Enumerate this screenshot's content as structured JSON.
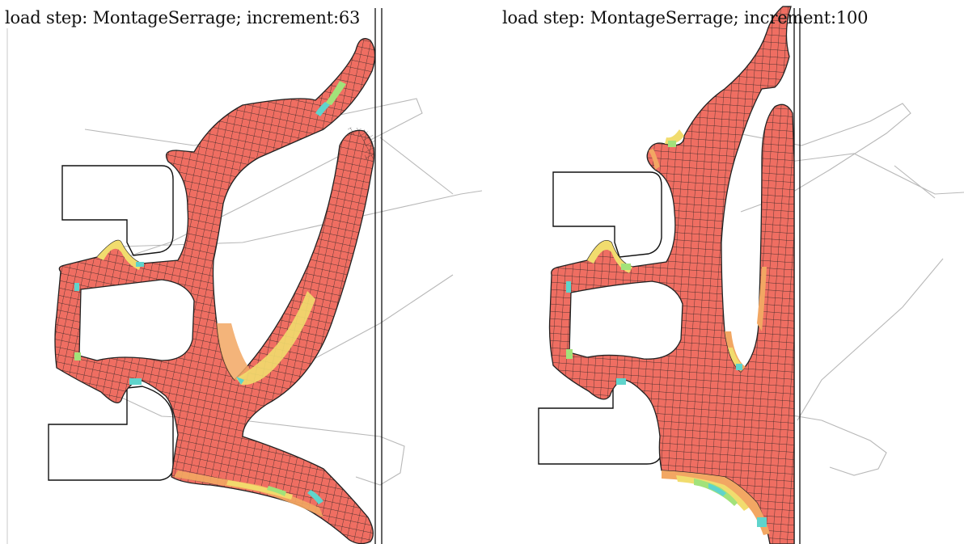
{
  "panels": [
    {
      "caption": "load step: MontageSerrage; increment:63"
    },
    {
      "caption": "load step: MontageSerrage; increment:100"
    }
  ],
  "colors": {
    "stress_high": "#ef6e62",
    "stress_mid": "#f2a763",
    "stress_low_yellow": "#f1dc6e",
    "stress_low_green": "#a2e27a",
    "stress_min_cyan": "#5fd4cc",
    "mesh_line": "#202020",
    "outline": "#111111",
    "reference_outline": "#b8b8b8"
  }
}
